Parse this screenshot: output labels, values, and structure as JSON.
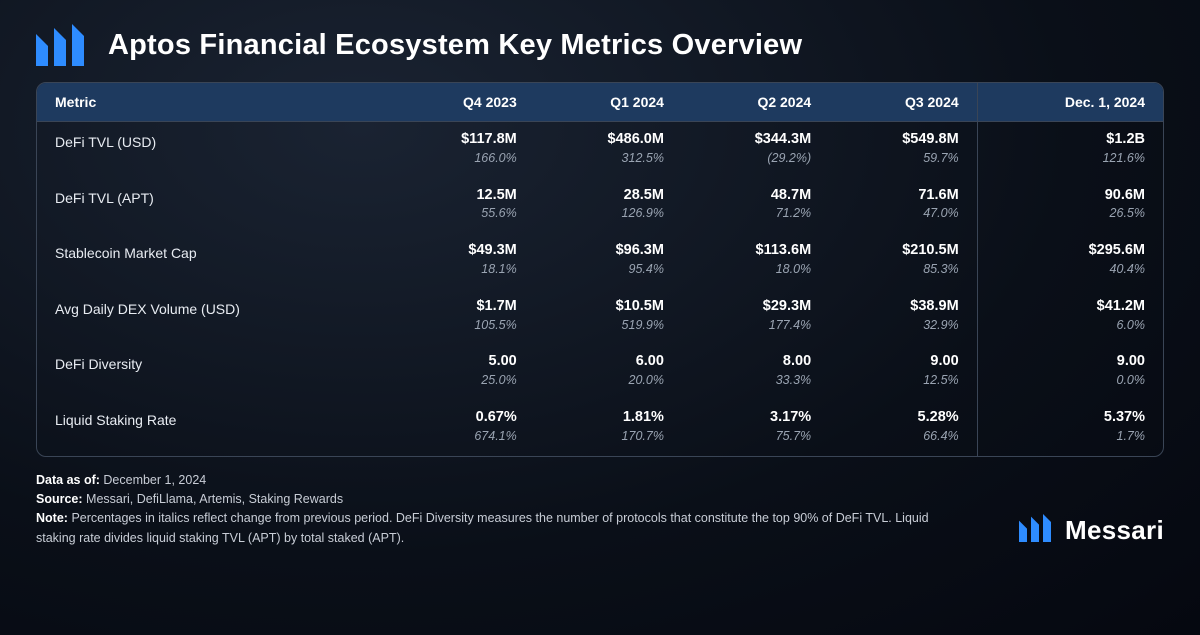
{
  "title": "Aptos Financial Ecosystem Key Metrics Overview",
  "brand_name": "Messari",
  "colors": {
    "accent": "#2e8cff",
    "header_row_bg": "#1e3a5f",
    "border": "#3a4556",
    "bg_outer": "#050810",
    "text_primary": "#ffffff",
    "text_secondary": "#9aa4b2"
  },
  "table": {
    "columns": [
      "Metric",
      "Q4 2023",
      "Q1 2024",
      "Q2 2024",
      "Q3 2024",
      "Dec. 1, 2024"
    ],
    "rows": [
      {
        "metric": "DeFi TVL (USD)",
        "cells": [
          {
            "v": "$117.8M",
            "p": "166.0%"
          },
          {
            "v": "$486.0M",
            "p": "312.5%"
          },
          {
            "v": "$344.3M",
            "p": "(29.2%)"
          },
          {
            "v": "$549.8M",
            "p": "59.7%"
          },
          {
            "v": "$1.2B",
            "p": "121.6%"
          }
        ]
      },
      {
        "metric": "DeFi TVL (APT)",
        "cells": [
          {
            "v": "12.5M",
            "p": "55.6%"
          },
          {
            "v": "28.5M",
            "p": "126.9%"
          },
          {
            "v": "48.7M",
            "p": "71.2%"
          },
          {
            "v": "71.6M",
            "p": "47.0%"
          },
          {
            "v": "90.6M",
            "p": "26.5%"
          }
        ]
      },
      {
        "metric": "Stablecoin Market Cap",
        "cells": [
          {
            "v": "$49.3M",
            "p": "18.1%"
          },
          {
            "v": "$96.3M",
            "p": "95.4%"
          },
          {
            "v": "$113.6M",
            "p": "18.0%"
          },
          {
            "v": "$210.5M",
            "p": "85.3%"
          },
          {
            "v": "$295.6M",
            "p": "40.4%"
          }
        ]
      },
      {
        "metric": "Avg Daily DEX Volume (USD)",
        "cells": [
          {
            "v": "$1.7M",
            "p": "105.5%"
          },
          {
            "v": "$10.5M",
            "p": "519.9%"
          },
          {
            "v": "$29.3M",
            "p": "177.4%"
          },
          {
            "v": "$38.9M",
            "p": "32.9%"
          },
          {
            "v": "$41.2M",
            "p": "6.0%"
          }
        ]
      },
      {
        "metric": "DeFi Diversity",
        "cells": [
          {
            "v": "5.00",
            "p": "25.0%"
          },
          {
            "v": "6.00",
            "p": "20.0%"
          },
          {
            "v": "8.00",
            "p": "33.3%"
          },
          {
            "v": "9.00",
            "p": "12.5%"
          },
          {
            "v": "9.00",
            "p": "0.0%"
          }
        ]
      },
      {
        "metric": "Liquid Staking Rate",
        "cells": [
          {
            "v": "0.67%",
            "p": "674.1%"
          },
          {
            "v": "1.81%",
            "p": "170.7%"
          },
          {
            "v": "3.17%",
            "p": "75.7%"
          },
          {
            "v": "5.28%",
            "p": "66.4%"
          },
          {
            "v": "5.37%",
            "p": "1.7%"
          }
        ]
      }
    ]
  },
  "footer": {
    "data_as_of_label": "Data as of:",
    "data_as_of_value": "December 1, 2024",
    "source_label": "Source:",
    "source_value": "Messari, DefiLlama, Artemis, Staking Rewards",
    "note_label": "Note:",
    "note_value": "Percentages in italics reflect change from previous period. DeFi Diversity measures the number of protocols that constitute the top 90% of DeFi TVL. Liquid staking rate divides liquid staking TVL (APT) by total staked (APT)."
  }
}
